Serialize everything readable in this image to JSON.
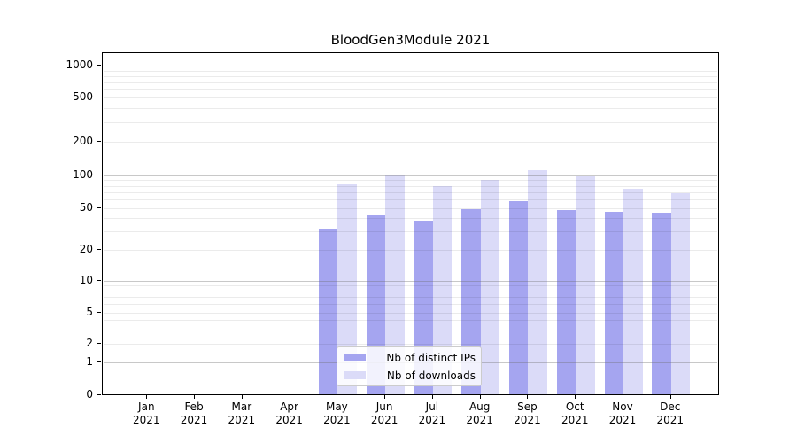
{
  "chart_data": {
    "type": "bar",
    "title": "BloodGen3Module 2021",
    "categories": [
      "Jan 2021",
      "Feb 2021",
      "Mar 2021",
      "Apr 2021",
      "May 2021",
      "Jun 2021",
      "Jul 2021",
      "Aug 2021",
      "Sep 2021",
      "Oct 2021",
      "Nov 2021",
      "Dec 2021"
    ],
    "series": [
      {
        "name": "Nb of distinct IPs",
        "color": "#a5a5f0",
        "values": [
          0,
          0,
          0,
          0,
          32,
          43,
          37,
          49,
          58,
          48,
          46,
          45
        ]
      },
      {
        "name": "Nb of downloads",
        "color": "#dbdbf8",
        "values": [
          0,
          0,
          0,
          0,
          82,
          100,
          80,
          91,
          110,
          97,
          75,
          68
        ]
      }
    ],
    "xlabel": "",
    "ylabel": "",
    "y_axis": {
      "scale": "symlog-like",
      "tick_labels": [
        0,
        1,
        2,
        5,
        10,
        20,
        50,
        100,
        200,
        500,
        1000
      ],
      "major_grid_at": [
        1,
        10,
        100,
        1000
      ],
      "minor_grid_at": [
        2,
        3,
        4,
        5,
        6,
        7,
        8,
        9,
        20,
        30,
        40,
        50,
        60,
        70,
        80,
        90,
        200,
        300,
        400,
        500,
        600,
        700,
        800,
        900
      ],
      "ylim": [
        0,
        1300
      ]
    },
    "grid": "horizontal",
    "legend": {
      "position": "lower-center-inside",
      "entries": [
        "Nb of distinct IPs",
        "Nb of downloads"
      ]
    }
  }
}
